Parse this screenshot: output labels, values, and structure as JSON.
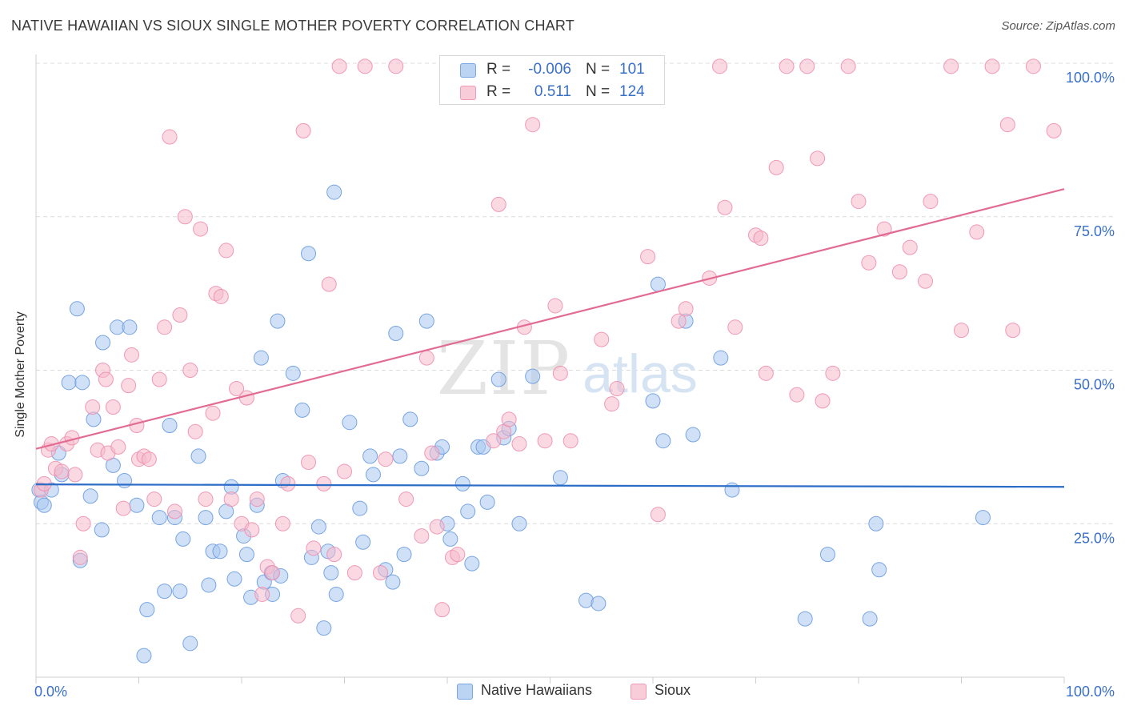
{
  "title": "NATIVE HAWAIIAN VS SIOUX SINGLE MOTHER POVERTY CORRELATION CHART",
  "source": "Source: ZipAtlas.com",
  "watermark": {
    "zip": "ZIP",
    "atlas": "atlas"
  },
  "legend_top": [
    {
      "r_label": "R =",
      "r_value": "-0.006",
      "n_label": "N =",
      "n_value": "101",
      "color": "#a9c8f0"
    },
    {
      "r_label": "R =",
      "r_value": "0.511",
      "n_label": "N =",
      "n_value": "124",
      "color": "#f6b9cc"
    }
  ],
  "legend_bottom": [
    {
      "label": "Native Hawaiians",
      "color": "#a9c8f0"
    },
    {
      "label": "Sioux",
      "color": "#f6b9cc"
    }
  ],
  "chart_data": {
    "type": "scatter",
    "xlabel": "",
    "ylabel": "Single Mother Poverty",
    "xlim": [
      0,
      100
    ],
    "ylim": [
      0,
      100
    ],
    "x_tick_labels": [
      "0.0%",
      "100.0%"
    ],
    "y_tick_labels": [
      "25.0%",
      "50.0%",
      "75.0%",
      "100.0%"
    ],
    "y_ticks": [
      25,
      50,
      75,
      100
    ],
    "grid": true,
    "series": [
      {
        "name": "Native Hawaiians",
        "color": "#a9c8f0",
        "stroke": "#6a9be0",
        "line_color": "#2b6cc7",
        "trend": [
          [
            0,
            31.4
          ],
          [
            100,
            31.0
          ]
        ],
        "points": [
          [
            0.3,
            30.5
          ],
          [
            0.5,
            28.5
          ],
          [
            0.8,
            28
          ],
          [
            1.5,
            30.5
          ],
          [
            2.2,
            36.5
          ],
          [
            2.5,
            33
          ],
          [
            3.2,
            48
          ],
          [
            4,
            60
          ],
          [
            4.3,
            19
          ],
          [
            4.5,
            48
          ],
          [
            5.3,
            29.5
          ],
          [
            5.6,
            42
          ],
          [
            6.5,
            54.5
          ],
          [
            6.4,
            24
          ],
          [
            7.5,
            34.5
          ],
          [
            7.9,
            57
          ],
          [
            8.6,
            32
          ],
          [
            9.1,
            57
          ],
          [
            9.8,
            28
          ],
          [
            10.5,
            3.5
          ],
          [
            10.8,
            11
          ],
          [
            12,
            26
          ],
          [
            12.5,
            14
          ],
          [
            13,
            41
          ],
          [
            13.5,
            26
          ],
          [
            14,
            14
          ],
          [
            14.3,
            22.5
          ],
          [
            15,
            5.5
          ],
          [
            15.8,
            36
          ],
          [
            16.5,
            26
          ],
          [
            16.8,
            15
          ],
          [
            17.2,
            20.5
          ],
          [
            17.9,
            20.5
          ],
          [
            18.5,
            27
          ],
          [
            19,
            31
          ],
          [
            19.3,
            16
          ],
          [
            20.2,
            23
          ],
          [
            20.5,
            20
          ],
          [
            20.9,
            13
          ],
          [
            21.5,
            28
          ],
          [
            21.9,
            52
          ],
          [
            22.2,
            15.5
          ],
          [
            22.9,
            17
          ],
          [
            23,
            13.5
          ],
          [
            23.5,
            58
          ],
          [
            23.8,
            16.5
          ],
          [
            24,
            32
          ],
          [
            25,
            49.5
          ],
          [
            25.9,
            43.5
          ],
          [
            26.5,
            69
          ],
          [
            26.8,
            19.5
          ],
          [
            27.5,
            24.5
          ],
          [
            28,
            8
          ],
          [
            28.4,
            20.5
          ],
          [
            28.7,
            17
          ],
          [
            29,
            79
          ],
          [
            29.2,
            13.5
          ],
          [
            30.5,
            41.5
          ],
          [
            31.5,
            27.5
          ],
          [
            31.8,
            22
          ],
          [
            32.5,
            36
          ],
          [
            32.8,
            33
          ],
          [
            34,
            17.5
          ],
          [
            34.7,
            15.5
          ],
          [
            35,
            56
          ],
          [
            35.4,
            36
          ],
          [
            35.8,
            20
          ],
          [
            36.4,
            42
          ],
          [
            37.5,
            34
          ],
          [
            38,
            58
          ],
          [
            39,
            36.5
          ],
          [
            39.5,
            37.5
          ],
          [
            40,
            25
          ],
          [
            40.3,
            22.5
          ],
          [
            41.5,
            31.5
          ],
          [
            42,
            27
          ],
          [
            42.4,
            18.5
          ],
          [
            43,
            37.5
          ],
          [
            43.5,
            37.5
          ],
          [
            43.9,
            28.5
          ],
          [
            45,
            48.5
          ],
          [
            45.5,
            39
          ],
          [
            46,
            40.5
          ],
          [
            47,
            25
          ],
          [
            48.3,
            49
          ],
          [
            51,
            32.5
          ],
          [
            53.5,
            12.5
          ],
          [
            54.7,
            12
          ],
          [
            60,
            45
          ],
          [
            60.5,
            64
          ],
          [
            61,
            38.5
          ],
          [
            63.2,
            58
          ],
          [
            63.9,
            39.5
          ],
          [
            66.6,
            52
          ],
          [
            67.7,
            30.5
          ],
          [
            74.8,
            9.5
          ],
          [
            77,
            20
          ],
          [
            81.1,
            9.5
          ],
          [
            81.7,
            25
          ],
          [
            82,
            17.5
          ],
          [
            92.1,
            26
          ]
        ]
      },
      {
        "name": "Sioux",
        "color": "#f6b9cc",
        "stroke": "#ee8fae",
        "line_color": "#e36b93",
        "trend": [
          [
            0,
            37.2
          ],
          [
            100,
            79.5
          ]
        ],
        "points": [
          [
            0.5,
            30.5
          ],
          [
            0.8,
            31.5
          ],
          [
            1.2,
            37
          ],
          [
            1.5,
            38
          ],
          [
            1.9,
            34
          ],
          [
            2.5,
            33.5
          ],
          [
            3,
            38
          ],
          [
            3.5,
            39
          ],
          [
            3.8,
            33
          ],
          [
            4.3,
            19.5
          ],
          [
            4.6,
            25
          ],
          [
            5.5,
            44
          ],
          [
            6,
            37
          ],
          [
            6.5,
            50
          ],
          [
            6.8,
            48.5
          ],
          [
            7,
            36.5
          ],
          [
            7.5,
            44
          ],
          [
            8,
            37.5
          ],
          [
            8.5,
            27.5
          ],
          [
            9,
            47.5
          ],
          [
            9.3,
            52.5
          ],
          [
            9.8,
            41
          ],
          [
            10,
            35.5
          ],
          [
            10.5,
            36
          ],
          [
            11,
            35.5
          ],
          [
            11.5,
            29
          ],
          [
            12,
            48.5
          ],
          [
            12.5,
            57
          ],
          [
            13,
            88
          ],
          [
            13.5,
            27
          ],
          [
            14,
            59
          ],
          [
            14.5,
            75
          ],
          [
            15,
            50
          ],
          [
            15.5,
            40
          ],
          [
            16,
            73
          ],
          [
            16.5,
            29
          ],
          [
            17.2,
            43
          ],
          [
            17.5,
            62.5
          ],
          [
            18,
            62
          ],
          [
            18.5,
            69.5
          ],
          [
            19,
            29
          ],
          [
            19.5,
            47
          ],
          [
            20,
            25
          ],
          [
            20.5,
            45.5
          ],
          [
            21,
            24
          ],
          [
            21.5,
            29
          ],
          [
            22,
            13.5
          ],
          [
            22.5,
            18
          ],
          [
            23,
            17
          ],
          [
            24,
            25
          ],
          [
            24.5,
            31.5
          ],
          [
            25.5,
            10
          ],
          [
            26,
            89
          ],
          [
            26.5,
            35
          ],
          [
            27,
            21
          ],
          [
            28,
            31.5
          ],
          [
            28.5,
            64
          ],
          [
            29,
            20
          ],
          [
            29.5,
            99.5
          ],
          [
            30,
            33.5
          ],
          [
            31,
            17
          ],
          [
            32,
            99.5
          ],
          [
            33.5,
            17
          ],
          [
            34,
            35.5
          ],
          [
            35,
            99.5
          ],
          [
            36,
            29
          ],
          [
            37.5,
            23
          ],
          [
            38,
            52
          ],
          [
            38.5,
            36.5
          ],
          [
            39,
            24.5
          ],
          [
            39.5,
            11
          ],
          [
            40.5,
            19.5
          ],
          [
            41,
            20
          ],
          [
            42,
            98
          ],
          [
            44.5,
            38.5
          ],
          [
            45,
            77
          ],
          [
            45.5,
            40
          ],
          [
            46,
            42
          ],
          [
            47,
            38
          ],
          [
            47.5,
            57
          ],
          [
            48.3,
            90
          ],
          [
            49.5,
            38.5
          ],
          [
            50.5,
            60.5
          ],
          [
            51,
            49.5
          ],
          [
            52,
            38.5
          ],
          [
            53,
            99.5
          ],
          [
            55,
            55
          ],
          [
            56,
            44.5
          ],
          [
            56.5,
            47
          ],
          [
            57,
            99.5
          ],
          [
            59.5,
            68.5
          ],
          [
            60.5,
            26.5
          ],
          [
            62.5,
            58
          ],
          [
            63.2,
            60
          ],
          [
            65.5,
            65
          ],
          [
            66.5,
            99.5
          ],
          [
            67,
            76.5
          ],
          [
            68,
            57
          ],
          [
            70,
            72
          ],
          [
            70.5,
            71.5
          ],
          [
            71,
            49.5
          ],
          [
            72,
            83
          ],
          [
            73,
            99.5
          ],
          [
            74,
            46
          ],
          [
            75,
            99.5
          ],
          [
            76,
            84.5
          ],
          [
            76.5,
            45
          ],
          [
            77.5,
            49.5
          ],
          [
            79,
            99.5
          ],
          [
            80,
            77.5
          ],
          [
            81,
            67.5
          ],
          [
            82.5,
            73
          ],
          [
            84,
            66
          ],
          [
            85,
            70
          ],
          [
            86.5,
            64.5
          ],
          [
            87,
            77.5
          ],
          [
            89,
            99.5
          ],
          [
            90,
            56.5
          ],
          [
            91.5,
            72.5
          ],
          [
            93,
            99.5
          ],
          [
            94.5,
            90
          ],
          [
            95,
            56.5
          ],
          [
            97,
            99.5
          ],
          [
            99,
            89
          ]
        ]
      }
    ]
  }
}
